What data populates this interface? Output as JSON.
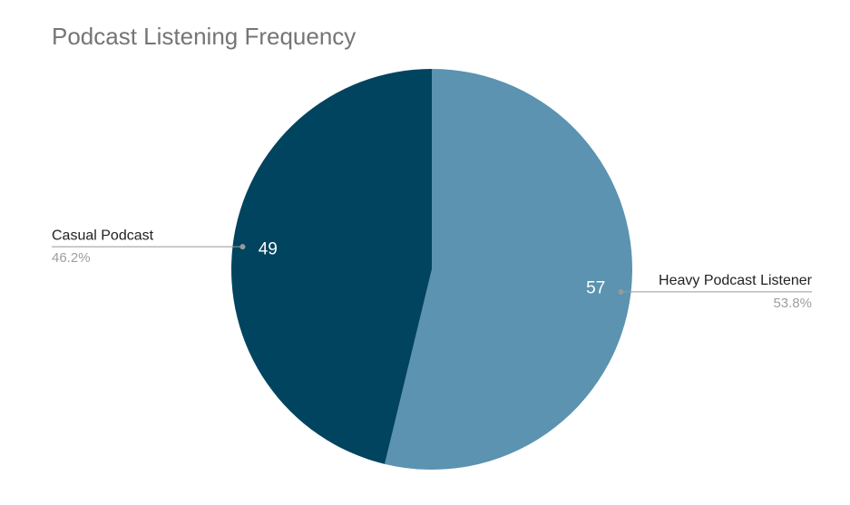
{
  "chart_data": {
    "type": "pie",
    "title": "Podcast Listening Frequency",
    "categories": [
      "Heavy Podcast Listener",
      "Casual Podcast"
    ],
    "values": [
      57,
      49
    ],
    "percent_labels": [
      "53.8%",
      "46.2%"
    ],
    "colors": [
      "#5b93b0",
      "#01445f"
    ]
  }
}
